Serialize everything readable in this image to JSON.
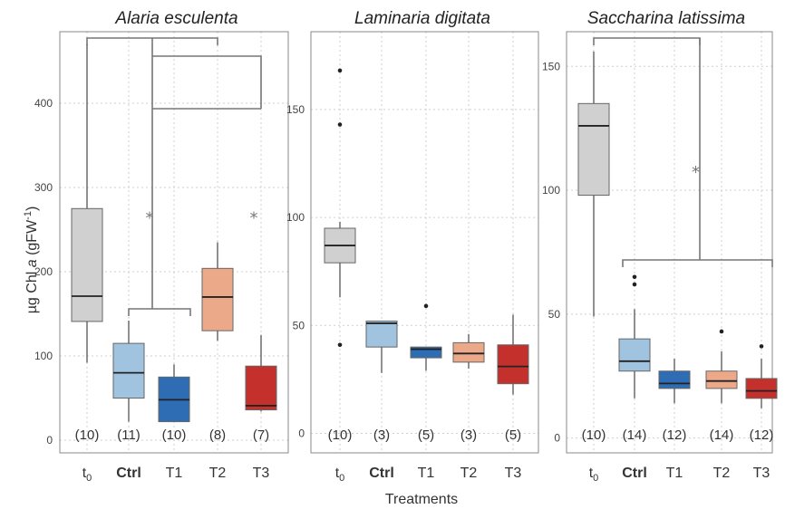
{
  "figure": {
    "xlabel": "Treatments",
    "ylabel_prefix": "µg Chl ",
    "ylabel_italic": "a",
    "ylabel_unit": " (gFW",
    "ylabel_sup": "-1",
    "ylabel_close": ")"
  },
  "colors": {
    "t0": "#d0d0d0",
    "Ctrl": "#a0c4e0",
    "T1": "#2e6db4",
    "T2": "#eca98a",
    "T3": "#c4312d"
  },
  "chart_data": [
    {
      "type": "box",
      "title": "Alaria esculenta",
      "categories": [
        "t0",
        "Ctrl",
        "T1",
        "T2",
        "T3"
      ],
      "category_labels": [
        {
          "main": "t",
          "sub": "0"
        },
        {
          "main": "Ctrl",
          "sub": ""
        },
        {
          "main": "T1",
          "sub": ""
        },
        {
          "main": "T2",
          "sub": ""
        },
        {
          "main": "T3",
          "sub": ""
        }
      ],
      "counts": [
        "(10)",
        "(11)",
        "(10)",
        "(8)",
        "(7)"
      ],
      "yticks": [
        0,
        100,
        200,
        300,
        400
      ],
      "ylim": [
        -15,
        485
      ],
      "boxes": [
        {
          "low": 92,
          "q1": 141,
          "median": 171,
          "q3": 275,
          "high": 470,
          "outliers": []
        },
        {
          "low": 22,
          "q1": 50,
          "median": 80,
          "q3": 115,
          "high": 142,
          "outliers": []
        },
        {
          "low": 22,
          "q1": 22,
          "median": 48,
          "q3": 75,
          "high": 90,
          "outliers": []
        },
        {
          "low": 118,
          "q1": 130,
          "median": 170,
          "q3": 204,
          "high": 235,
          "outliers": []
        },
        {
          "low": 34,
          "q1": 36,
          "median": 41,
          "q3": 88,
          "high": 125,
          "outliers": []
        }
      ],
      "asterisks": [
        {
          "x_cat": 1.5,
          "y": 266,
          "label": "*"
        },
        {
          "x_cat": 4.0,
          "y": 266,
          "label": "*"
        }
      ]
    },
    {
      "type": "box",
      "title": "Laminaria digitata",
      "categories": [
        "t0",
        "Ctrl",
        "T1",
        "T2",
        "T3"
      ],
      "category_labels": [
        {
          "main": "t",
          "sub": "0"
        },
        {
          "main": "Ctrl",
          "sub": ""
        },
        {
          "main": "T1",
          "sub": ""
        },
        {
          "main": "T2",
          "sub": ""
        },
        {
          "main": "T3",
          "sub": ""
        }
      ],
      "counts": [
        "(10)",
        "(3)",
        "(5)",
        "(3)",
        "(5)"
      ],
      "yticks": [
        0,
        50,
        100,
        150
      ],
      "ylim": [
        -9,
        186
      ],
      "boxes": [
        {
          "low": 63,
          "q1": 79,
          "median": 87,
          "q3": 95,
          "high": 98,
          "outliers": [
            168,
            143,
            41
          ]
        },
        {
          "low": 28,
          "q1": 40,
          "median": 51,
          "q3": 52,
          "high": 52,
          "outliers": []
        },
        {
          "low": 29,
          "q1": 35,
          "median": 39,
          "q3": 40,
          "high": 40,
          "outliers": [
            59
          ]
        },
        {
          "low": 30,
          "q1": 33,
          "median": 37,
          "q3": 42,
          "high": 46,
          "outliers": []
        },
        {
          "low": 18,
          "q1": 23,
          "median": 31,
          "q3": 41,
          "high": 55,
          "outliers": []
        }
      ],
      "asterisks": []
    },
    {
      "type": "box",
      "title": "Saccharina latissima",
      "categories": [
        "t0",
        "Ctrl",
        "T1",
        "T2",
        "T3"
      ],
      "category_labels": [
        {
          "main": "t",
          "sub": "0"
        },
        {
          "main": "Ctrl",
          "sub": ""
        },
        {
          "main": "T1",
          "sub": ""
        },
        {
          "main": "T2",
          "sub": ""
        },
        {
          "main": "T3",
          "sub": ""
        }
      ],
      "counts": [
        "(10)",
        "(14)",
        "(12)",
        "(14)",
        "(12)"
      ],
      "yticks": [
        0,
        50,
        100,
        150
      ],
      "ylim": [
        -6,
        164
      ],
      "boxes": [
        {
          "low": 49,
          "q1": 98,
          "median": 126,
          "q3": 135,
          "high": 156,
          "outliers": []
        },
        {
          "low": 16,
          "q1": 27,
          "median": 31,
          "q3": 40,
          "high": 52,
          "outliers": [
            62,
            65
          ]
        },
        {
          "low": 14,
          "q1": 20,
          "median": 22,
          "q3": 27,
          "high": 32,
          "outliers": []
        },
        {
          "low": 14,
          "q1": 20,
          "median": 23,
          "q3": 27,
          "high": 35,
          "outliers": [
            43
          ]
        },
        {
          "low": 12,
          "q1": 16,
          "median": 19,
          "q3": 24,
          "high": 32,
          "outliers": [
            37
          ]
        }
      ],
      "asterisks": [
        {
          "x_cat": 2.5,
          "y": 108,
          "label": "*"
        }
      ]
    }
  ]
}
